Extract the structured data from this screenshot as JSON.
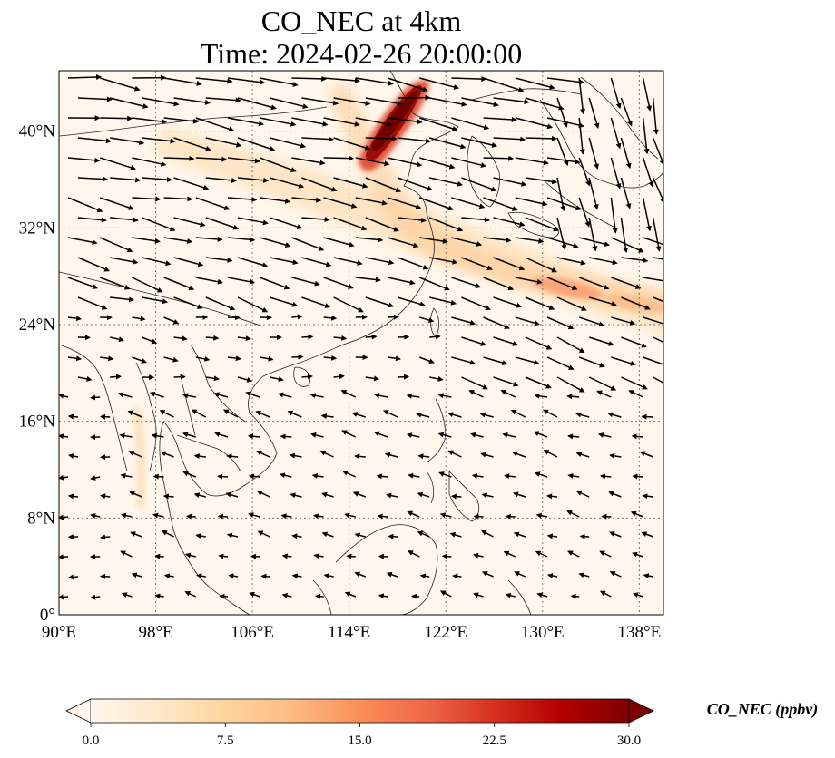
{
  "title": {
    "line1": "CO_NEC at 4km",
    "line2": "Time: 2024-02-26 20:00:00"
  },
  "map": {
    "lon_range": [
      90,
      140
    ],
    "lat_range": [
      0,
      45
    ],
    "lon_ticks": [
      90,
      98,
      106,
      114,
      122,
      130,
      138
    ],
    "lat_ticks": [
      0,
      8,
      16,
      24,
      32,
      40
    ],
    "lon_labels": [
      "90°E",
      "98°E",
      "106°E",
      "114°E",
      "122°E",
      "130°E",
      "138°E"
    ],
    "lat_labels": [
      "0°",
      "8°N",
      "16°N",
      "24°N",
      "32°N",
      "40°N"
    ],
    "gridlines": true,
    "background": "#fff7ec"
  },
  "colorbar": {
    "label": "CO_NEC (ppbv)",
    "range": [
      0,
      30
    ],
    "ticks": [
      "0.0",
      "7.5",
      "15.0",
      "22.5",
      "30.0"
    ],
    "colormap": [
      "#fff7ec",
      "#fee8c8",
      "#fdd49e",
      "#fdbb84",
      "#fc8d59",
      "#ef6548",
      "#d7301f",
      "#b30000",
      "#7f0000"
    ],
    "extend": "both"
  }
}
